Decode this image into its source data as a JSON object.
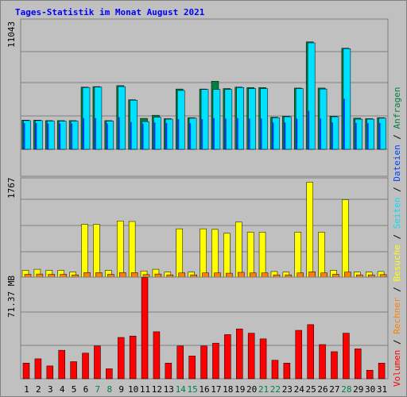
{
  "title": "Tages-Statistik im Monat August 2021",
  "legend": {
    "anfragen": "Anfragen",
    "dateien": "Dateien",
    "seiten": "Seiten",
    "besuche": "Besuche",
    "rechner": "Rechner",
    "volumen": "Volumen",
    "sep": " / "
  },
  "colors": {
    "anfragen": "#008040",
    "dateien": "#00e0ff",
    "seiten": "#0040ff",
    "besuche": "#ffff00",
    "rechner": "#ff8000",
    "volumen": "#ff0000",
    "weekend_label": "#008040",
    "weekday_label": "#000000",
    "title": "#0000ff",
    "panel_bg": "#c0c0c0",
    "grid": "#808080"
  },
  "chart_data": {
    "type": "bar",
    "x": [
      "1",
      "2",
      "3",
      "4",
      "5",
      "6",
      "7",
      "8",
      "9",
      "10",
      "11",
      "12",
      "13",
      "14",
      "15",
      "16",
      "17",
      "18",
      "19",
      "20",
      "21",
      "22",
      "23",
      "24",
      "25",
      "26",
      "27",
      "28",
      "29",
      "30",
      "31"
    ],
    "weekend": [
      false,
      false,
      false,
      false,
      false,
      false,
      true,
      true,
      false,
      false,
      false,
      false,
      false,
      true,
      true,
      false,
      false,
      false,
      false,
      false,
      true,
      true,
      false,
      false,
      false,
      false,
      false,
      true,
      false,
      false,
      false
    ],
    "panels": [
      {
        "name": "requests",
        "ymax_label": "11043",
        "ymax": 13400,
        "series": [
          {
            "key": "anfragen",
            "values": [
              3000,
              3000,
              2950,
              2950,
              2950,
              6400,
              6450,
              2950,
              6550,
              5100,
              3180,
              3500,
              3150,
              6200,
              3250,
              6200,
              7000,
              6250,
              6400,
              6350,
              6350,
              3300,
              3400,
              6300,
              11050,
              6300,
              3400,
              10400,
              3200,
              3150,
              3250
            ]
          },
          {
            "key": "dateien",
            "values": [
              2950,
              2950,
              2900,
              2900,
              2900,
              6350,
              6400,
              2900,
              6450,
              5050,
              2850,
              3300,
              3100,
              6050,
              3200,
              6150,
              6150,
              6150,
              6350,
              6250,
              6250,
              3250,
              3350,
              6250,
              10950,
              6200,
              3350,
              10350,
              3100,
              3100,
              3200
            ]
          },
          {
            "key": "seiten",
            "values": [
              2700,
              2700,
              2650,
              2650,
              2650,
              3200,
              3200,
              2650,
              3300,
              2800,
              2650,
              2750,
              2700,
              3100,
              2700,
              3100,
              3200,
              3150,
              3200,
              3150,
              3150,
              2750,
              2750,
              3150,
              3950,
              3150,
              2750,
              5200,
              2700,
              2700,
              2700
            ]
          }
        ]
      },
      {
        "name": "visits",
        "ymax_label": "1767",
        "ymax": 1767,
        "series": [
          {
            "key": "besuche",
            "values": [
              120,
              140,
              120,
              120,
              90,
              940,
              940,
              120,
              1000,
              990,
              110,
              140,
              90,
              860,
              90,
              860,
              850,
              780,
              980,
              800,
              800,
              100,
              90,
              800,
              1690,
              800,
              120,
              1380,
              90,
              90,
              100
            ]
          },
          {
            "key": "rechner",
            "values": [
              50,
              55,
              50,
              50,
              40,
              80,
              80,
              50,
              80,
              80,
              45,
              55,
              40,
              75,
              40,
              75,
              75,
              70,
              85,
              75,
              75,
              40,
              40,
              75,
              95,
              75,
              50,
              90,
              40,
              40,
              45
            ]
          }
        ]
      },
      {
        "name": "volume",
        "ymax_label": "71.37 MB",
        "ymax": 71.37,
        "series": [
          {
            "key": "volumen",
            "values": [
              11,
              14,
              9,
              20,
              12,
              18,
              23,
              7,
              29,
              30,
              71,
              33,
              11,
              23,
              16,
              23,
              25,
              31,
              35,
              32,
              28,
              13,
              11,
              34,
              38,
              24,
              19,
              32,
              21,
              6,
              11
            ]
          }
        ]
      }
    ]
  }
}
